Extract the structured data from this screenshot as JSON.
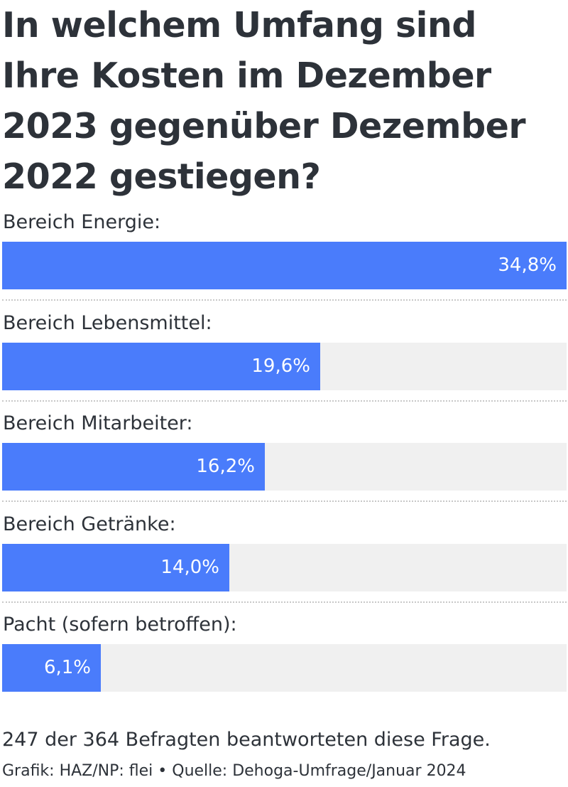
{
  "chart_data": {
    "type": "bar",
    "orientation": "horizontal",
    "title": "In welchem Umfang sind Ihre Kosten im Dezember 2023 gegenüber Dezember 2022 gestiegen?",
    "categories": [
      "Bereich Energie:",
      "Bereich Lebensmittel:",
      "Bereich Mitarbeiter:",
      "Bereich Getränke:",
      "Pacht (sofern betroffen):"
    ],
    "values": [
      34.8,
      19.6,
      16.2,
      14.0,
      6.1
    ],
    "value_labels": [
      "34,8%",
      "19,6%",
      "16,2%",
      "14,0%",
      "6,1%"
    ],
    "xlim": [
      0,
      34.8
    ],
    "grid": false,
    "legend": "none",
    "bar_color": "#4a7cfb",
    "track_color": "#f0f0f0"
  },
  "footer": {
    "note": "247 der 364 Befragten beantworteten diese Frage.",
    "source": "Grafik: HAZ/NP: flei • Quelle: Dehoga-Umfrage/Januar 2024"
  }
}
